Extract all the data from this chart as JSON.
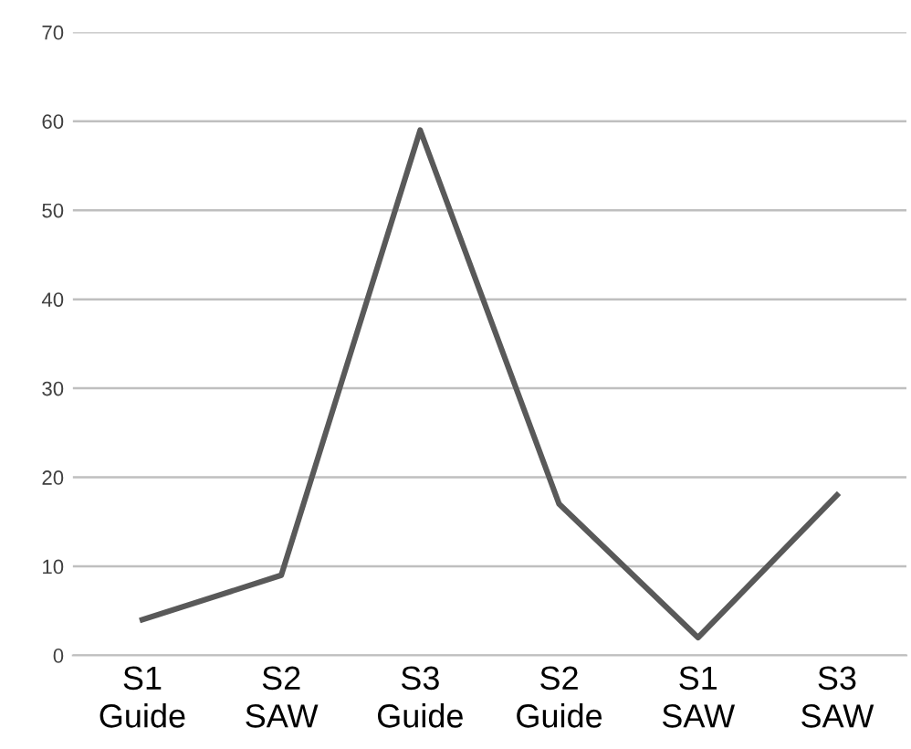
{
  "chart_data": {
    "type": "line",
    "categories": [
      "S1\nGuide",
      "S2\nSAW",
      "S3\nGuide",
      "S2\nGuide",
      "S1\nSAW",
      "S3\nSAW"
    ],
    "values": [
      4,
      9,
      59,
      17,
      2,
      18
    ],
    "color": "#595959",
    "ylim": [
      0,
      70
    ],
    "yticks": [
      0,
      10,
      20,
      30,
      40,
      50,
      60,
      70
    ],
    "grid": "y",
    "marker": "none",
    "line_style": "solid",
    "legend": false
  }
}
